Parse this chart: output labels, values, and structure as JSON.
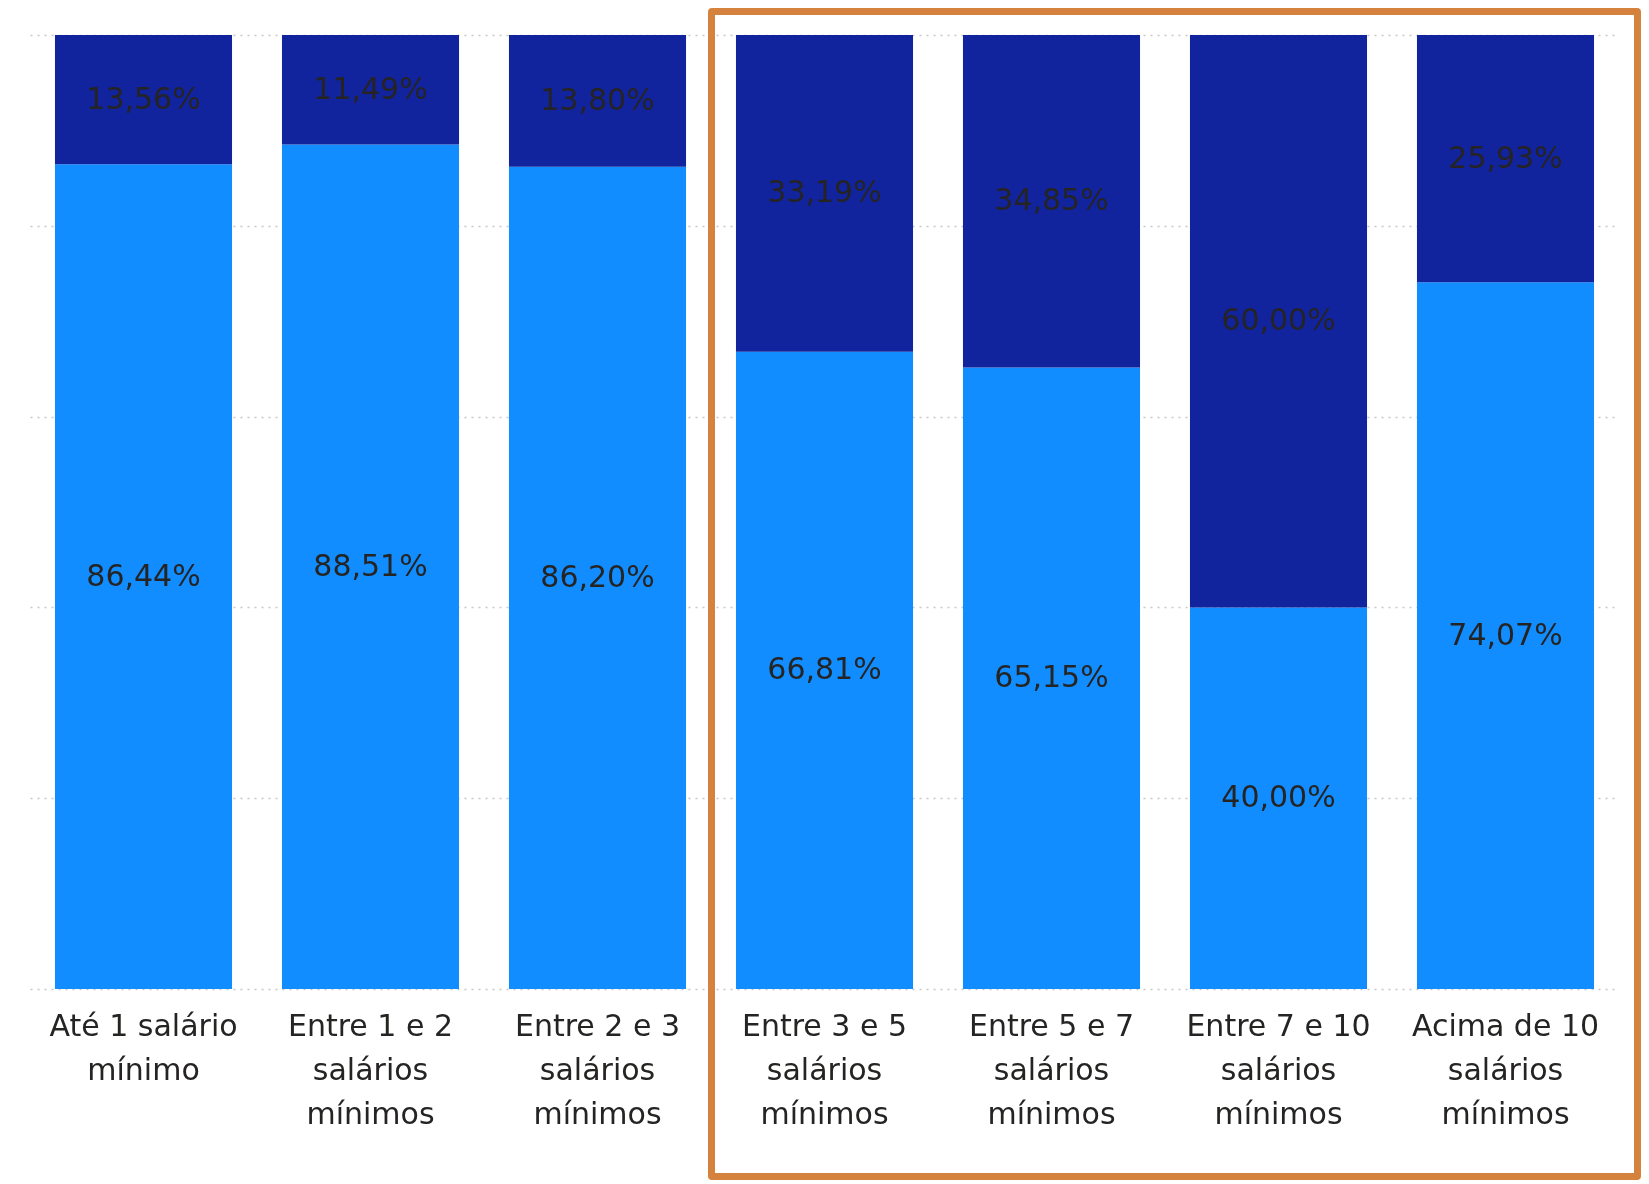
{
  "chart_data": {
    "type": "bar",
    "stacked": true,
    "categories": [
      "Até 1 salário mínimo",
      "Entre 1 e 2 salários mínimos",
      "Entre 2 e 3 salários mínimos",
      "Entre 3 e 5 salários mínimos",
      "Entre 5 e 7 salários mínimos",
      "Entre 7 e 10 salários mínimos",
      "Acima de 10 salários mínimos"
    ],
    "series": [
      {
        "color": "#118dff",
        "values": [
          86.44,
          88.51,
          86.2,
          66.81,
          65.15,
          40,
          74.07
        ],
        "value_labels": [
          "86,44%",
          "88,51%",
          "86,20%",
          "66,81%",
          "65,15%",
          "40,00%",
          "74,07%"
        ]
      },
      {
        "color": "#12239e",
        "values": [
          13.56,
          11.49,
          13.8,
          33.19,
          34.85,
          60,
          25.93
        ],
        "value_labels": [
          "13,56%",
          "11,49%",
          "13,80%",
          "33,19%",
          "34,85%",
          "60,00%",
          "25,93%"
        ]
      }
    ],
    "ylim": [
      0,
      100
    ],
    "yticks": [
      0,
      20,
      40,
      60,
      80,
      100
    ],
    "grid": "y",
    "tick_labels": "x"
  }
}
